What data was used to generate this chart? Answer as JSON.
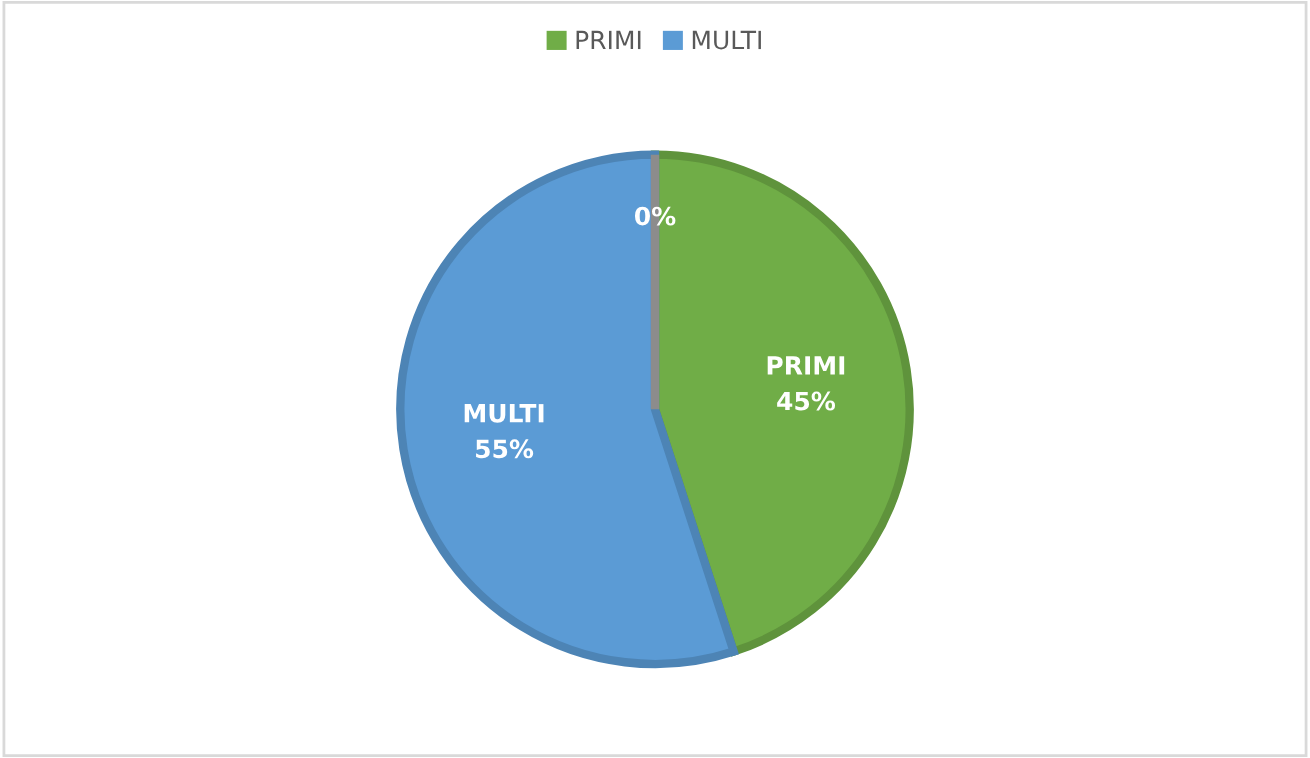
{
  "chart_data": {
    "type": "pie",
    "categories": [
      "PRIMI",
      "MULTI",
      null
    ],
    "values": [
      45,
      55,
      0
    ],
    "colors": [
      "#70ad47",
      "#5b9bd5",
      "#a5a5a5"
    ],
    "value_labels": [
      "PRIMI\n45%",
      "MULTI\n55%",
      "0%"
    ],
    "legend": "top"
  }
}
